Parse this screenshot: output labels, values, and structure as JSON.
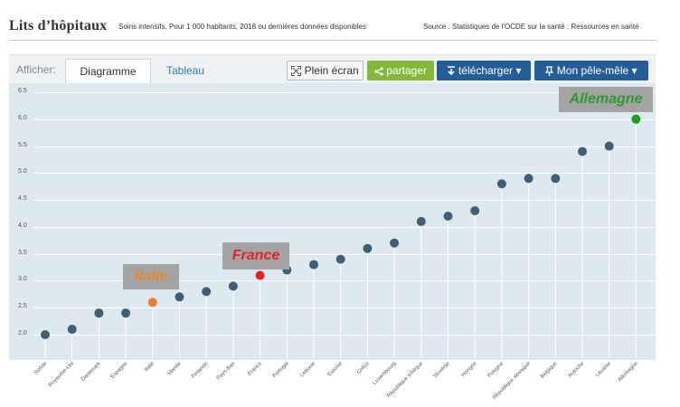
{
  "header": {
    "title": "Lits d’hôpitaux",
    "subtitle": "Soins intensifs, Pour 1 000 habitants, 2018 ou dernières données disponibles",
    "source": "Source : Statistiques de l'OCDE sur la santé : Ressources en santé"
  },
  "toolbar": {
    "afficher": "Afficher:",
    "tabs": [
      "Diagramme",
      "Tableau"
    ],
    "plein_ecran": "Plein écran",
    "partager": "partager",
    "telecharger": "télécharger ▾",
    "pele_mele": "Mon pêle-mêle ▾"
  },
  "colors": {
    "default": "#3f5f78",
    "italie": "#f07b28",
    "france": "#e82020",
    "allemagne": "#1e9e1e",
    "stem": "#ffffff",
    "plot_bg": "#dde8ef"
  },
  "annotations": {
    "italie": "Italie",
    "france": "France",
    "allemagne": "Allemagne"
  },
  "chart_data": {
    "type": "lollipop",
    "ylim": [
      1.9,
      6.5
    ],
    "yticks": [
      "6.5",
      "6.0",
      "5.5",
      "5.0",
      "4.5",
      "4.0",
      "3.5",
      "3.0",
      "2.5",
      "2.0"
    ],
    "grid": true,
    "categories": [
      "Suède",
      "Royaume-Uni",
      "Danemark",
      "Espagne",
      "Italie",
      "Irlande",
      "Finlande",
      "Pays-Bas",
      "France",
      "Portugal",
      "Lettonie",
      "Estonie",
      "Grèce",
      "Luxembourg",
      "République tchèque",
      "Slovénie",
      "Hongrie",
      "Pologne",
      "République slovaque",
      "Belgique",
      "Autriche",
      "Lituanie",
      "Allemagne"
    ],
    "values": [
      2.0,
      2.1,
      2.4,
      2.4,
      2.6,
      2.7,
      2.8,
      2.9,
      3.1,
      3.2,
      3.3,
      3.4,
      3.6,
      3.7,
      4.1,
      4.2,
      4.3,
      4.8,
      4.9,
      4.9,
      5.4,
      5.5,
      6.0
    ],
    "highlight": {
      "Italie": "italie",
      "France": "france",
      "Allemagne": "allemagne"
    }
  }
}
